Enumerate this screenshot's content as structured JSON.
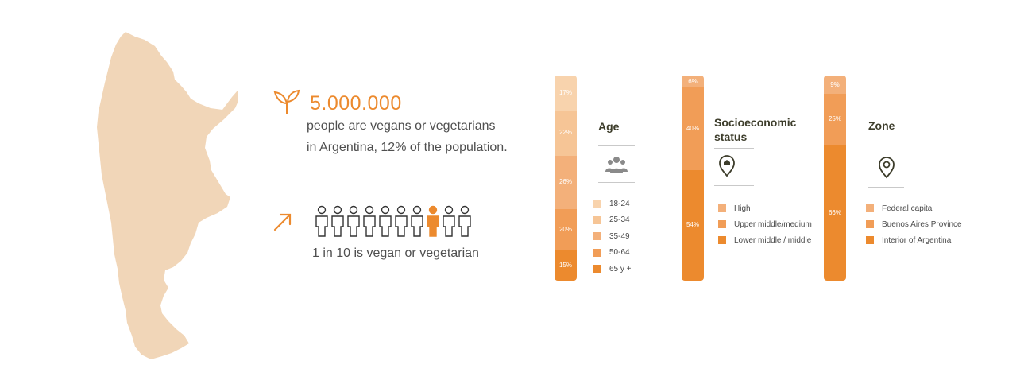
{
  "summary": {
    "headline": "5.000.000",
    "desc_line1": "people are vegans or vegetarians",
    "desc_line2": "in Argentina, 12% of the population.",
    "ratio_text": "1 in 10 is vegan or vegetarian",
    "people_total": 10,
    "people_highlighted_index": 7
  },
  "colors": {
    "accent": "#ec8a2e",
    "text": "#4f4f4f",
    "title": "#3d3d2b",
    "map": "#f1d6b8",
    "person_outline": "#333333"
  },
  "icons": {
    "sprout": "sprout-icon",
    "arrow": "arrow-up-right-icon",
    "group": "people-group-icon",
    "house": "house-pin-icon",
    "location": "location-pin-icon"
  },
  "chart_data": [
    {
      "type": "bar",
      "stacked": true,
      "title": "Age",
      "categories": [
        "18-24",
        "25-34",
        "35-49",
        "50-64",
        "65 y +"
      ],
      "values": [
        17,
        22,
        26,
        20,
        15
      ],
      "labels": [
        "17%",
        "22%",
        "26%",
        "20%",
        "15%"
      ],
      "colors": [
        "#f8d3ad",
        "#f6c596",
        "#f3b07a",
        "#f19d57",
        "#ec8a2e"
      ]
    },
    {
      "type": "bar",
      "stacked": true,
      "title_line1": "Socioeconomic",
      "title_line2": "status",
      "categories": [
        "High",
        "Upper middle/medium",
        "Lower middle / middle"
      ],
      "values": [
        6,
        40,
        54
      ],
      "labels": [
        "6%",
        "40%",
        "54%"
      ],
      "colors": [
        "#f3b07a",
        "#f19d57",
        "#ec8a2e"
      ]
    },
    {
      "type": "bar",
      "stacked": true,
      "title": "Zone",
      "categories": [
        "Federal capital",
        "Buenos Aires Province",
        "Interior of Argentina"
      ],
      "values": [
        9,
        25,
        66
      ],
      "labels": [
        "9%",
        "25%",
        "66%"
      ],
      "colors": [
        "#f3b07a",
        "#f19d57",
        "#ec8a2e"
      ]
    }
  ]
}
